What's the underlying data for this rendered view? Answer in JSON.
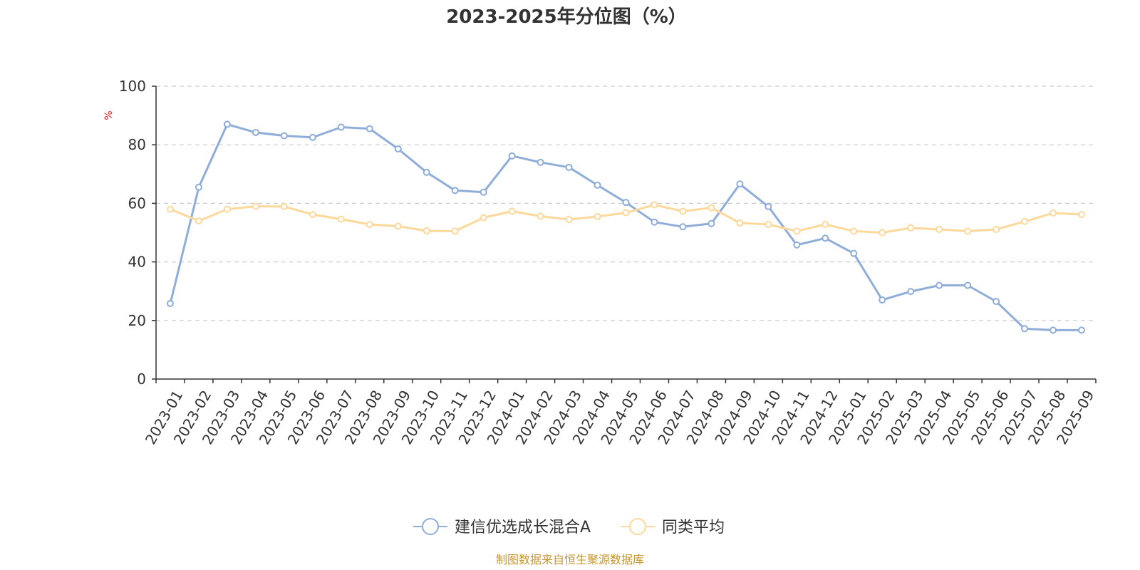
{
  "chart_data": {
    "type": "line",
    "title": "2023-2025年分位图（%）",
    "ylabel": "%",
    "xlabel": "",
    "ylim": [
      0,
      100
    ],
    "yticks": [
      0,
      20,
      40,
      60,
      80,
      100
    ],
    "grid": true,
    "legend_position": "bottom",
    "categories": [
      "2023-01",
      "2023-02",
      "2023-03",
      "2023-04",
      "2023-05",
      "2023-06",
      "2023-07",
      "2023-08",
      "2023-09",
      "2023-10",
      "2023-11",
      "2023-12",
      "2024-01",
      "2024-02",
      "2024-03",
      "2024-04",
      "2024-05",
      "2024-06",
      "2024-07",
      "2024-08",
      "2024-09",
      "2024-10",
      "2024-11",
      "2024-12",
      "2025-01",
      "2025-02",
      "2025-03",
      "2025-04",
      "2025-05",
      "2025-06",
      "2025-07",
      "2025-08",
      "2025-09"
    ],
    "series": [
      {
        "name": "建信优选成长混合A",
        "color": "#8fadd9",
        "values": [
          25.8,
          65.5,
          87.0,
          84.2,
          83.1,
          82.5,
          86.0,
          85.5,
          78.6,
          70.6,
          64.4,
          63.8,
          76.2,
          74.0,
          72.3,
          66.2,
          60.3,
          53.6,
          52.0,
          53.1,
          66.6,
          58.9,
          45.8,
          48.1,
          42.9,
          27.0,
          29.9,
          32.0,
          32.0,
          26.5,
          17.2,
          16.7,
          16.7
        ]
      },
      {
        "name": "同类平均",
        "color": "#fcd99a",
        "values": [
          58.0,
          54.0,
          58.0,
          59.0,
          58.9,
          56.2,
          54.6,
          52.8,
          52.2,
          50.6,
          50.5,
          55.1,
          57.3,
          55.6,
          54.5,
          55.5,
          56.8,
          59.5,
          57.3,
          58.5,
          53.3,
          52.8,
          50.5,
          52.8,
          50.5,
          50.0,
          51.6,
          51.1,
          50.5,
          51.1,
          53.8,
          56.7,
          56.2
        ]
      }
    ]
  },
  "footer": {
    "source": "制图数据来自恒生聚源数据库"
  }
}
